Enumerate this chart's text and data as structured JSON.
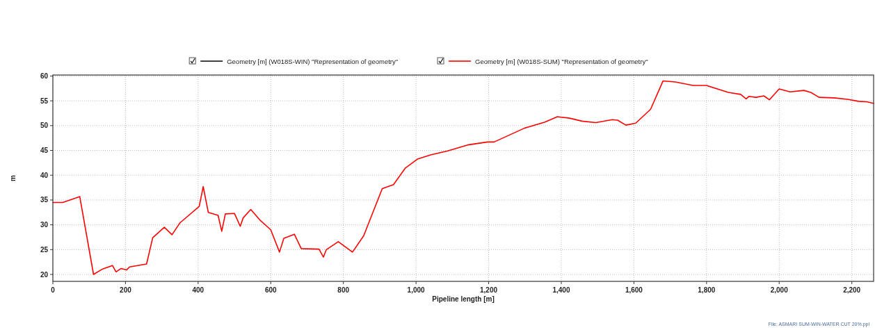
{
  "chart_data": {
    "type": "line",
    "xlabel": "Pipeline length [m]",
    "ylabel": "m",
    "xlim": [
      0,
      2260
    ],
    "ylim": [
      18.6,
      60.2
    ],
    "xticks": [
      0,
      200,
      400,
      600,
      800,
      {
        "value": 1000,
        "label": "1,000"
      },
      {
        "value": 1200,
        "label": "1,200"
      },
      {
        "value": 1400,
        "label": "1,400"
      },
      {
        "value": 1600,
        "label": "1,600"
      },
      {
        "value": 1800,
        "label": "1,800"
      },
      {
        "value": 2000,
        "label": "2,000"
      },
      {
        "value": 2200,
        "label": "2,200"
      }
    ],
    "yticks": [
      20,
      25,
      30,
      35,
      40,
      45,
      50,
      55,
      60
    ],
    "grid": true,
    "legend": "top",
    "line_style": "solid",
    "marker": "none",
    "annotations": [
      "File: ASMARI SUM-WIN-WATER CUT 20%.ppl"
    ],
    "series": [
      {
        "name": "Geometry [m] (W018S-WIN) \"Representation of geometry\"",
        "color": "#000000"
      },
      {
        "name": "Geometry [m] (W018S-SUM) \"Representation of geometry\"",
        "color": "#ff0000",
        "x": [
          0,
          27,
          63,
          74,
          112,
          137,
          164,
          174,
          188,
          203,
          211,
          258,
          275,
          307,
          328,
          350,
          403,
          414,
          428,
          455,
          465,
          475,
          500,
          516,
          524,
          545,
          571,
          600,
          624,
          636,
          665,
          684,
          733,
          745,
          753,
          786,
          825,
          856,
          907,
          938,
          970,
          1005,
          1040,
          1087,
          1142,
          1197,
          1215,
          1299,
          1355,
          1389,
          1423,
          1457,
          1495,
          1540,
          1555,
          1578,
          1605,
          1646,
          1680,
          1714,
          1763,
          1800,
          1860,
          1894,
          1909,
          1917,
          1936,
          1958,
          1973,
          2000,
          2030,
          2068,
          2087,
          2110,
          2151,
          2189,
          2219,
          2241,
          2260
        ],
        "values": [
          34.5,
          34.5,
          35.4,
          35.7,
          20.0,
          21.1,
          21.8,
          20.5,
          21.2,
          20.9,
          21.5,
          22.1,
          27.4,
          29.5,
          28.0,
          30.4,
          33.7,
          37.7,
          32.5,
          31.9,
          28.7,
          32.2,
          32.3,
          29.7,
          31.4,
          33.1,
          30.9,
          29.0,
          24.5,
          27.3,
          28.1,
          25.2,
          25.1,
          23.5,
          25.0,
          26.6,
          24.5,
          27.8,
          37.3,
          38.1,
          41.4,
          43.3,
          44.1,
          44.9,
          46.1,
          46.7,
          46.7,
          49.5,
          50.7,
          51.8,
          51.5,
          50.9,
          50.6,
          51.2,
          51.1,
          50.1,
          50.5,
          53.3,
          59.0,
          58.8,
          58.1,
          58.1,
          56.7,
          56.3,
          55.4,
          55.9,
          55.7,
          56.0,
          55.2,
          57.4,
          56.8,
          57.1,
          56.7,
          55.7,
          55.6,
          55.3,
          54.9,
          54.8,
          54.5
        ]
      }
    ]
  }
}
